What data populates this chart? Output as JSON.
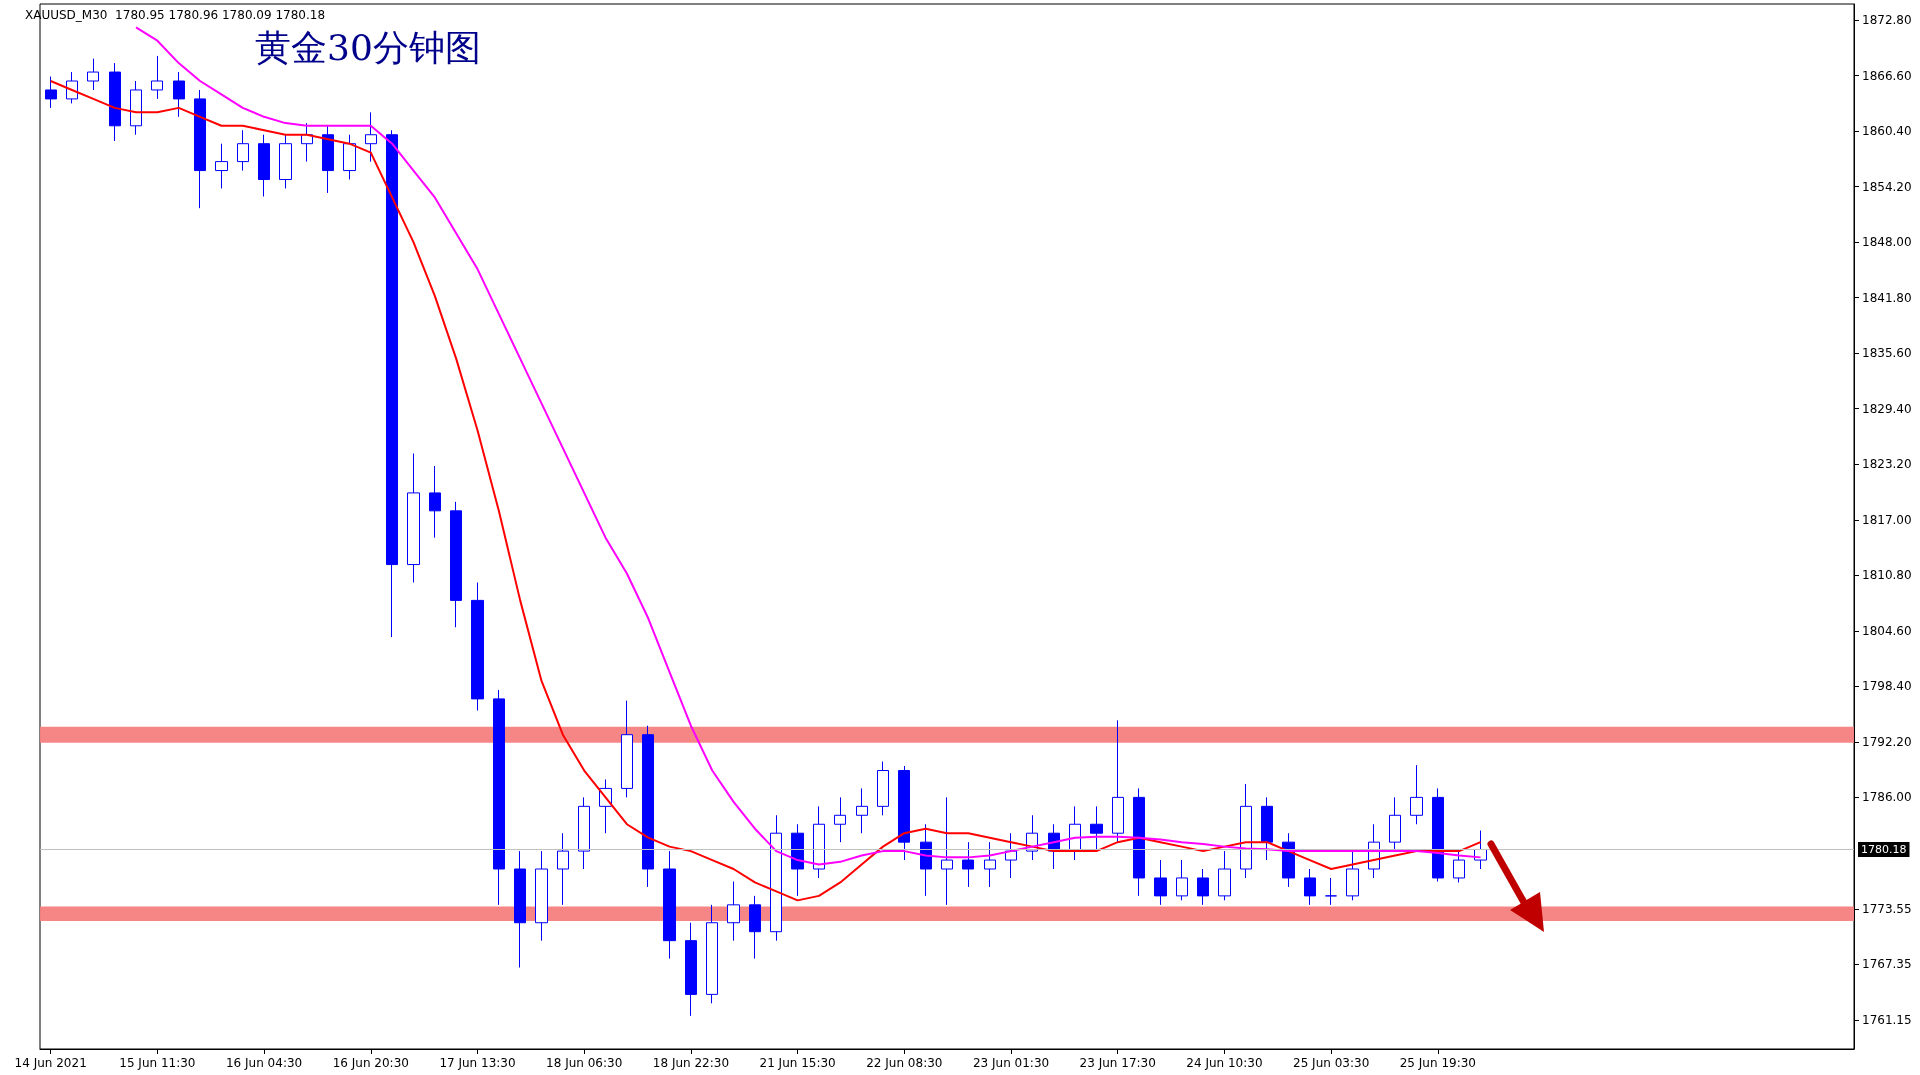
{
  "chart_data": {
    "type": "candlestick",
    "title": "黄金30分钟图",
    "subtitle": "XAUUSD_M30  1780.95 1780.96 1780.09 1780.18",
    "categories": [
      "14 Jun 2021",
      null,
      null,
      null,
      null,
      "15 Jun 11:30",
      null,
      null,
      null,
      null,
      "16 Jun 04:30",
      null,
      null,
      null,
      null,
      "16 Jun 20:30",
      null,
      null,
      null,
      null,
      "17 Jun 13:30",
      null,
      null,
      null,
      null,
      "18 Jun 06:30",
      null,
      null,
      null,
      null,
      "18 Jun 22:30",
      null,
      null,
      null,
      null,
      "21 Jun 15:30",
      null,
      null,
      null,
      null,
      "22 Jun 08:30",
      null,
      null,
      null,
      null,
      "23 Jun 01:30",
      null,
      null,
      null,
      null,
      "23 Jun 17:30",
      null,
      null,
      null,
      null,
      "24 Jun 10:30",
      null,
      null,
      null,
      null,
      "25 Jun 03:30",
      null,
      null,
      null,
      null,
      "25 Jun 19:30",
      null,
      null,
      null,
      null,
      null,
      null,
      null,
      null,
      null,
      null,
      null,
      null,
      null,
      null,
      null,
      null,
      null,
      null,
      null
    ],
    "ohlc": [
      [
        1865,
        1866.5,
        1863,
        1864
      ],
      [
        1864,
        1867,
        1863.5,
        1866
      ],
      [
        1866,
        1868.5,
        1865,
        1867
      ],
      [
        1867,
        1868,
        1859.3,
        1861
      ],
      [
        1861,
        1866,
        1860,
        1865
      ],
      [
        1865,
        1868.8,
        1864,
        1866
      ],
      [
        1866,
        1867,
        1862,
        1864
      ],
      [
        1864,
        1865,
        1851.8,
        1856
      ],
      [
        1856,
        1859,
        1854,
        1857
      ],
      [
        1857,
        1860.5,
        1856,
        1859
      ],
      [
        1859,
        1860,
        1853.1,
        1855
      ],
      [
        1855,
        1860,
        1854,
        1859
      ],
      [
        1859,
        1861.3,
        1857,
        1860
      ],
      [
        1860,
        1861,
        1853.5,
        1856
      ],
      [
        1856,
        1860,
        1855,
        1859
      ],
      [
        1859,
        1862.5,
        1857,
        1860
      ],
      [
        1860,
        1860.5,
        1803.9,
        1812
      ],
      [
        1812,
        1824.4,
        1810,
        1820
      ],
      [
        1820,
        1823,
        1815,
        1818
      ],
      [
        1818,
        1819,
        1805,
        1808
      ],
      [
        1808,
        1810,
        1795.7,
        1797
      ],
      [
        1797,
        1798,
        1774,
        1778
      ],
      [
        1778,
        1780,
        1767,
        1772
      ],
      [
        1772,
        1780,
        1770,
        1778
      ],
      [
        1778,
        1782,
        1774,
        1780
      ],
      [
        1780,
        1786,
        1778,
        1785
      ],
      [
        1785,
        1788,
        1782,
        1787
      ],
      [
        1787,
        1796.8,
        1786,
        1793
      ],
      [
        1793,
        1794,
        1776,
        1778
      ],
      [
        1778,
        1780,
        1768,
        1770
      ],
      [
        1770,
        1772,
        1761.6,
        1764
      ],
      [
        1764,
        1774,
        1763,
        1772
      ],
      [
        1772,
        1776.6,
        1770,
        1774
      ],
      [
        1774,
        1775,
        1768,
        1771
      ],
      [
        1771,
        1784,
        1770,
        1782
      ],
      [
        1782,
        1783,
        1775,
        1778
      ],
      [
        1778,
        1785,
        1777,
        1783
      ],
      [
        1783,
        1786,
        1781,
        1784
      ],
      [
        1784,
        1787,
        1782,
        1785
      ],
      [
        1785,
        1790,
        1784,
        1789
      ],
      [
        1789,
        1789.5,
        1779,
        1781
      ],
      [
        1781,
        1783,
        1775,
        1778
      ],
      [
        1778,
        1786,
        1774,
        1779
      ],
      [
        1779,
        1781,
        1776,
        1778
      ],
      [
        1778,
        1781,
        1776,
        1779
      ],
      [
        1779,
        1782,
        1777,
        1780
      ],
      [
        1780,
        1784,
        1779,
        1782
      ],
      [
        1782,
        1783,
        1778,
        1780
      ],
      [
        1780,
        1785,
        1779,
        1783
      ],
      [
        1783,
        1785,
        1780,
        1782
      ],
      [
        1782,
        1794.6,
        1781,
        1786
      ],
      [
        1786,
        1787,
        1775,
        1777
      ],
      [
        1777,
        1779,
        1774,
        1775
      ],
      [
        1775,
        1779,
        1774.5,
        1777
      ],
      [
        1777,
        1778,
        1774,
        1775
      ],
      [
        1775,
        1780,
        1774.5,
        1778
      ],
      [
        1778,
        1787.5,
        1777,
        1785
      ],
      [
        1785,
        1786,
        1779,
        1781
      ],
      [
        1781,
        1782,
        1776,
        1777
      ],
      [
        1777,
        1778,
        1774,
        1775
      ],
      [
        1775,
        1777,
        1774,
        1775
      ],
      [
        1775,
        1780,
        1774.5,
        1778
      ],
      [
        1778,
        1783,
        1777,
        1781
      ],
      [
        1781,
        1786,
        1780,
        1784
      ],
      [
        1784,
        1789.6,
        1783,
        1786
      ],
      [
        1786,
        1787,
        1776.6,
        1777
      ],
      [
        1777,
        1780,
        1776.5,
        1779
      ],
      [
        1779,
        1782.3,
        1778,
        1780.18
      ],
      null,
      null,
      null,
      null,
      null,
      null,
      null,
      null,
      null,
      null,
      null,
      null,
      null,
      null,
      null,
      null,
      null
    ],
    "color": "#0000ff",
    "series": [
      {
        "type": "line",
        "color": "#ff0000",
        "values": [
          1866,
          1865,
          1864,
          1863,
          1862.5,
          1862.5,
          1863,
          1862,
          1861,
          1861,
          1860.5,
          1860,
          1860,
          1859.5,
          1859,
          1858,
          1853,
          1848,
          1842,
          1835,
          1827,
          1818,
          1808,
          1799,
          1793,
          1789,
          1786,
          1783,
          1781.5,
          1780.5,
          1780,
          1779,
          1778,
          1776.5,
          1775.5,
          1774.5,
          1775,
          1776.5,
          1778.5,
          1780.5,
          1782,
          1782.5,
          1782,
          1782,
          1781.5,
          1781,
          1780.5,
          1780,
          1780,
          1780,
          1781,
          1781.5,
          1781,
          1780.5,
          1780,
          1780.5,
          1781,
          1781,
          1780,
          1779,
          1778,
          1778.5,
          1779,
          1779.5,
          1780,
          1780,
          1780,
          1781,
          null,
          null,
          null,
          null,
          null,
          null,
          null,
          null,
          null,
          null,
          null,
          null,
          null,
          null,
          null,
          null,
          null
        ]
      },
      {
        "type": "line",
        "color": "#ff00ff",
        "values": [
          null,
          null,
          null,
          null,
          1872,
          1870.5,
          1868,
          1866,
          1864.5,
          1863,
          1862,
          1861.3,
          1861,
          1861,
          1861,
          1861,
          1859,
          1856,
          1853,
          1849,
          1845,
          1840,
          1835,
          1830,
          1825,
          1820,
          1815,
          1811,
          1806,
          1800,
          1794,
          1789,
          1785.5,
          1782.5,
          1780,
          1779,
          1778.5,
          1778.8,
          1779.5,
          1780,
          1780,
          1779.5,
          1779.3,
          1779.3,
          1779.5,
          1780,
          1780.5,
          1781,
          1781.5,
          1781.6,
          1781.6,
          1781.5,
          1781.3,
          1781,
          1780.8,
          1780.5,
          1780.3,
          1780.2,
          1780,
          1780,
          1780,
          1780,
          1780,
          1780,
          1780,
          1779.8,
          1779.5,
          1779.3,
          null,
          null,
          null,
          null,
          null,
          null,
          null,
          null,
          null,
          null,
          null,
          null,
          null,
          null,
          null,
          null,
          null
        ]
      }
    ],
    "ylim": [
      1757.9,
      1874.6
    ],
    "yticks": [
      {
        "value": 1761.15,
        "label": "1761.15"
      },
      {
        "value": 1767.35,
        "label": "1767.35"
      },
      {
        "value": 1773.55,
        "label": "1773.55"
      },
      {
        "value": 1786,
        "label": "1786.00"
      },
      {
        "value": 1792.2,
        "label": "1792.20"
      },
      {
        "value": 1798.4,
        "label": "1798.40"
      },
      {
        "value": 1804.6,
        "label": "1804.60"
      },
      {
        "value": 1810.8,
        "label": "1810.80"
      },
      {
        "value": 1817,
        "label": "1817.00"
      },
      {
        "value": 1823.2,
        "label": "1823.20"
      },
      {
        "value": 1829.4,
        "label": "1829.40"
      },
      {
        "value": 1835.6,
        "label": "1835.60"
      },
      {
        "value": 1841.8,
        "label": "1841.80"
      },
      {
        "value": 1848,
        "label": "1848.00"
      },
      {
        "value": 1854.2,
        "label": "1854.20"
      },
      {
        "value": 1860.4,
        "label": "1860.40"
      },
      {
        "value": 1866.6,
        "label": "1866.60"
      },
      {
        "value": 1872.8,
        "label": "1872.80"
      }
    ],
    "bands": [
      {
        "axis": "y",
        "from": 1792.1,
        "to": 1793.9,
        "color": "#f57f7f"
      },
      {
        "axis": "y",
        "from": 1772.2,
        "to": 1773.8,
        "color": "#f57f7f"
      }
    ],
    "ref_lines": [
      {
        "axis": "y",
        "value": 1780.18,
        "label": "1780.18",
        "color": "#c0c0c0"
      }
    ]
  }
}
